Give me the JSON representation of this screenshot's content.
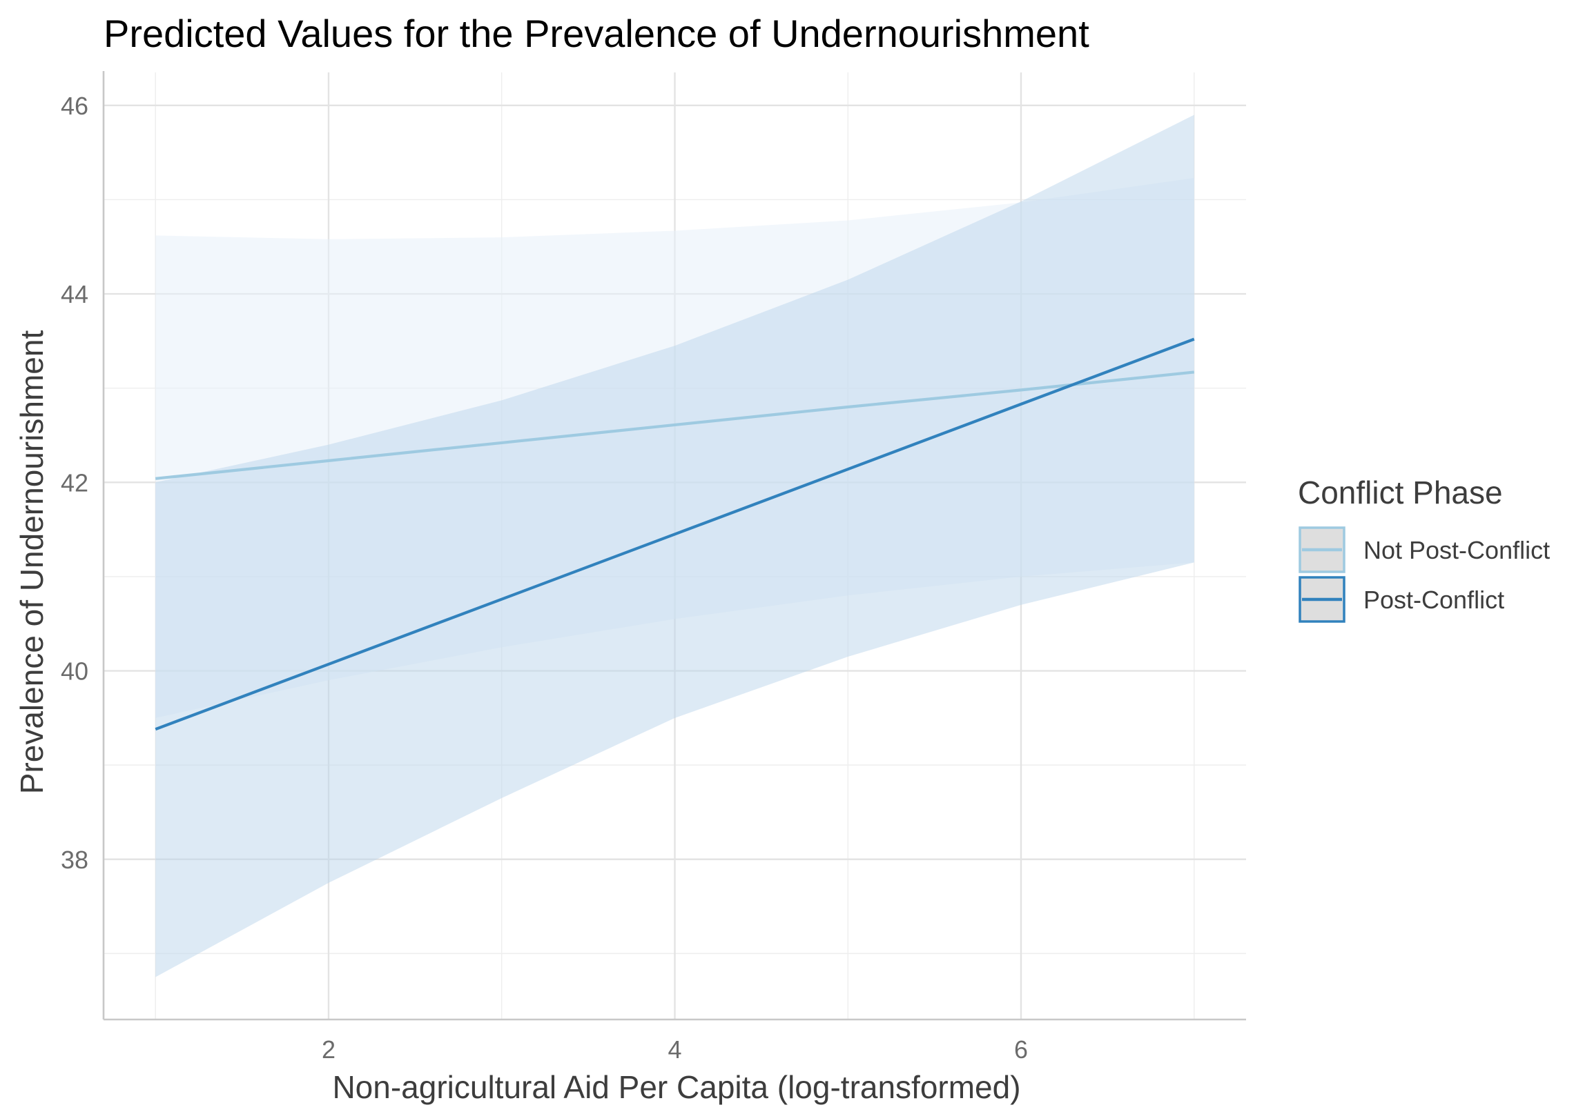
{
  "chart_data": {
    "type": "line",
    "title": "Predicted Values for the Prevalence of Undernourishment",
    "xlabel": "Non-agricultural Aid Per Capita (log-transformed)",
    "ylabel": "Prevalence of Undernourishment",
    "xlim": [
      0.7,
      7.3
    ],
    "ylim": [
      36.3,
      46.35
    ],
    "x_ticks": [
      2,
      4,
      6
    ],
    "x_tick_labels": [
      "2",
      "4",
      "6"
    ],
    "y_ticks": [
      38,
      40,
      42,
      44,
      46
    ],
    "y_tick_labels": [
      "38",
      "40",
      "42",
      "44",
      "46"
    ],
    "grid": true,
    "legend": {
      "title": "Conflict Phase",
      "position": "right"
    },
    "series": [
      {
        "name": "Not Post-Conflict",
        "color": "#9ecae1",
        "ribbon_color": "#deebf7",
        "x": [
          1,
          2,
          3,
          4,
          5,
          6,
          7
        ],
        "y": [
          42.04,
          42.23,
          42.42,
          42.61,
          42.8,
          42.98,
          43.17
        ],
        "lower": [
          39.5,
          39.9,
          40.25,
          40.55,
          40.8,
          41.0,
          41.15
        ],
        "upper": [
          44.62,
          44.58,
          44.6,
          44.67,
          44.78,
          44.97,
          45.23
        ]
      },
      {
        "name": "Post-Conflict",
        "color": "#3182bd",
        "ribbon_color": "#c6dbef",
        "x": [
          1,
          2,
          3,
          4,
          5,
          6,
          7
        ],
        "y": [
          39.38,
          40.07,
          40.76,
          41.45,
          42.14,
          42.83,
          43.52
        ],
        "lower": [
          36.75,
          37.75,
          38.65,
          39.5,
          40.15,
          40.7,
          41.15
        ],
        "upper": [
          42.0,
          42.4,
          42.87,
          43.45,
          44.15,
          44.98,
          45.9
        ]
      }
    ]
  }
}
